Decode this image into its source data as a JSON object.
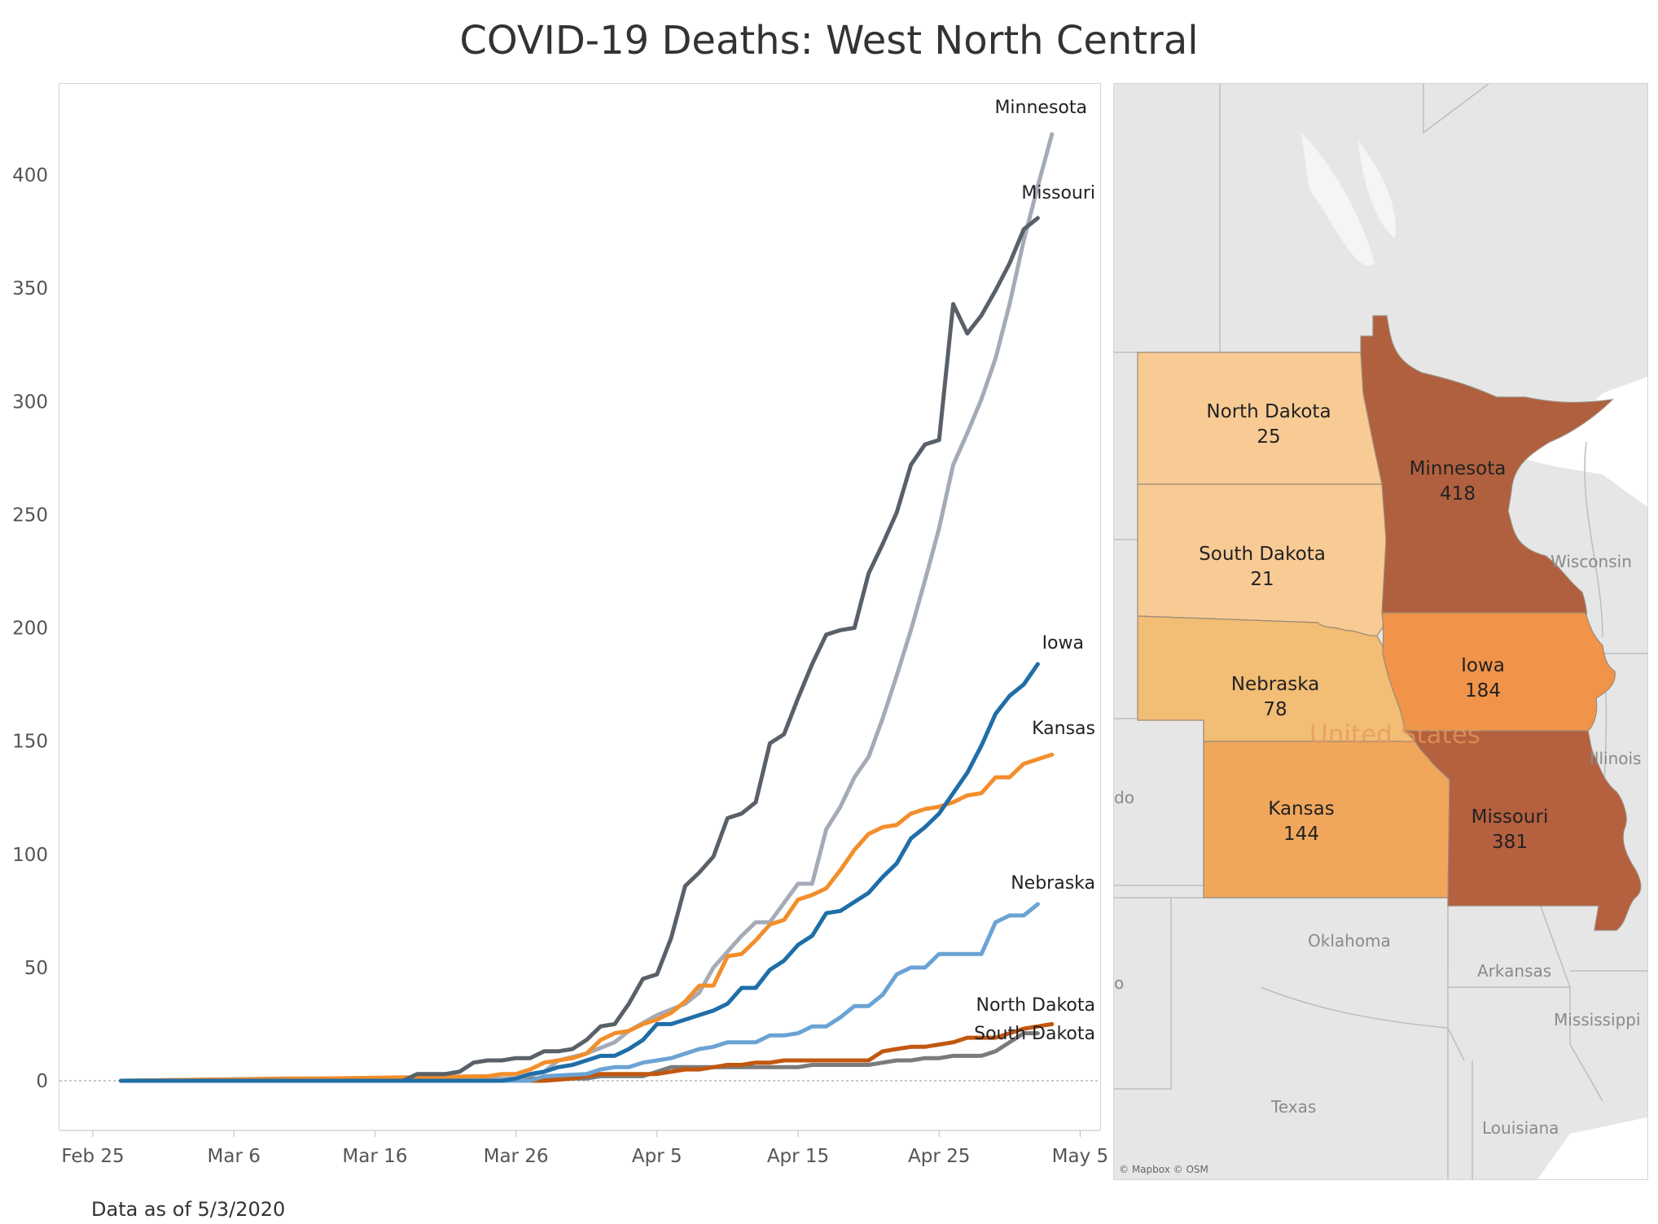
{
  "title": "COVID-19 Deaths: West North Central",
  "footnote": "Data as of 5/3/2020",
  "chart_data": {
    "type": "line",
    "title": "COVID-19 Deaths: West North Central",
    "xlabel": "",
    "ylabel": "",
    "ylim": [
      -17,
      430
    ],
    "x_start": "2020-02-27",
    "x_ticks": [
      "Feb 25",
      "Mar 6",
      "Mar 16",
      "Mar 26",
      "Apr 5",
      "Apr 15",
      "Apr 25",
      "May 5"
    ],
    "y_ticks": [
      0,
      50,
      100,
      150,
      200,
      250,
      300,
      350,
      400
    ],
    "zero_line": "dotted",
    "series": [
      {
        "name": "Minnesota",
        "color": "#a4abb6",
        "points": [
          [
            "2020-02-27",
            0
          ],
          [
            "2020-03-21",
            1
          ],
          [
            "2020-03-26",
            1
          ],
          [
            "2020-03-28",
            4
          ],
          [
            "2020-03-29",
            9
          ],
          [
            "2020-03-31",
            12
          ],
          [
            "2020-04-02",
            17
          ],
          [
            "2020-04-03",
            22
          ],
          [
            "2020-04-05",
            29
          ],
          [
            "2020-04-07",
            34
          ],
          [
            "2020-04-08",
            39
          ],
          [
            "2020-04-09",
            50
          ],
          [
            "2020-04-10",
            57
          ],
          [
            "2020-04-11",
            64
          ],
          [
            "2020-04-12",
            70
          ],
          [
            "2020-04-13",
            70
          ],
          [
            "2020-04-15",
            87
          ],
          [
            "2020-04-16",
            87
          ],
          [
            "2020-04-17",
            111
          ],
          [
            "2020-04-18",
            121
          ],
          [
            "2020-04-19",
            134
          ],
          [
            "2020-04-20",
            143
          ],
          [
            "2020-04-21",
            160
          ],
          [
            "2020-04-22",
            179
          ],
          [
            "2020-04-23",
            199
          ],
          [
            "2020-04-24",
            221
          ],
          [
            "2020-04-25",
            244
          ],
          [
            "2020-04-26",
            272
          ],
          [
            "2020-04-27",
            286
          ],
          [
            "2020-04-28",
            301
          ],
          [
            "2020-04-29",
            319
          ],
          [
            "2020-04-30",
            343
          ],
          [
            "2020-05-01",
            371
          ],
          [
            "2020-05-02",
            395
          ],
          [
            "2020-05-03",
            418
          ]
        ]
      },
      {
        "name": "Missouri",
        "color": "#596068",
        "points": [
          [
            "2020-02-27",
            0
          ],
          [
            "2020-03-18",
            0
          ],
          [
            "2020-03-19",
            3
          ],
          [
            "2020-03-21",
            3
          ],
          [
            "2020-03-22",
            4
          ],
          [
            "2020-03-23",
            8
          ],
          [
            "2020-03-24",
            9
          ],
          [
            "2020-03-25",
            9
          ],
          [
            "2020-03-26",
            10
          ],
          [
            "2020-03-27",
            10
          ],
          [
            "2020-03-28",
            13
          ],
          [
            "2020-03-29",
            13
          ],
          [
            "2020-03-30",
            14
          ],
          [
            "2020-03-31",
            18
          ],
          [
            "2020-04-01",
            24
          ],
          [
            "2020-04-02",
            25
          ],
          [
            "2020-04-03",
            34
          ],
          [
            "2020-04-04",
            45
          ],
          [
            "2020-04-05",
            47
          ],
          [
            "2020-04-06",
            63
          ],
          [
            "2020-04-07",
            86
          ],
          [
            "2020-04-08",
            92
          ],
          [
            "2020-04-09",
            99
          ],
          [
            "2020-04-10",
            116
          ],
          [
            "2020-04-11",
            118
          ],
          [
            "2020-04-12",
            123
          ],
          [
            "2020-04-13",
            149
          ],
          [
            "2020-04-14",
            153
          ],
          [
            "2020-04-15",
            169
          ],
          [
            "2020-04-16",
            184
          ],
          [
            "2020-04-17",
            197
          ],
          [
            "2020-04-18",
            199
          ],
          [
            "2020-04-19",
            200
          ],
          [
            "2020-04-20",
            224
          ],
          [
            "2020-04-21",
            237
          ],
          [
            "2020-04-22",
            251
          ],
          [
            "2020-04-23",
            272
          ],
          [
            "2020-04-24",
            281
          ],
          [
            "2020-04-25",
            283
          ],
          [
            "2020-04-26",
            343
          ],
          [
            "2020-04-27",
            330
          ],
          [
            "2020-04-28",
            338
          ],
          [
            "2020-04-29",
            349
          ],
          [
            "2020-04-30",
            361
          ],
          [
            "2020-05-01",
            376
          ],
          [
            "2020-05-02",
            381
          ]
        ]
      },
      {
        "name": "Iowa",
        "color": "#1f6ea8",
        "points": [
          [
            "2020-02-27",
            0
          ],
          [
            "2020-03-25",
            0
          ],
          [
            "2020-03-26",
            1
          ],
          [
            "2020-03-27",
            3
          ],
          [
            "2020-03-28",
            4
          ],
          [
            "2020-03-29",
            6
          ],
          [
            "2020-03-30",
            7
          ],
          [
            "2020-03-31",
            9
          ],
          [
            "2020-04-01",
            11
          ],
          [
            "2020-04-02",
            11
          ],
          [
            "2020-04-03",
            14
          ],
          [
            "2020-04-04",
            18
          ],
          [
            "2020-04-05",
            25
          ],
          [
            "2020-04-06",
            25
          ],
          [
            "2020-04-07",
            27
          ],
          [
            "2020-04-08",
            29
          ],
          [
            "2020-04-09",
            31
          ],
          [
            "2020-04-10",
            34
          ],
          [
            "2020-04-11",
            41
          ],
          [
            "2020-04-12",
            41
          ],
          [
            "2020-04-13",
            49
          ],
          [
            "2020-04-14",
            53
          ],
          [
            "2020-04-15",
            60
          ],
          [
            "2020-04-16",
            64
          ],
          [
            "2020-04-17",
            74
          ],
          [
            "2020-04-18",
            75
          ],
          [
            "2020-04-19",
            79
          ],
          [
            "2020-04-20",
            83
          ],
          [
            "2020-04-21",
            90
          ],
          [
            "2020-04-22",
            96
          ],
          [
            "2020-04-23",
            107
          ],
          [
            "2020-04-24",
            112
          ],
          [
            "2020-04-25",
            118
          ],
          [
            "2020-04-26",
            127
          ],
          [
            "2020-04-27",
            136
          ],
          [
            "2020-04-28",
            148
          ],
          [
            "2020-04-29",
            162
          ],
          [
            "2020-04-30",
            170
          ],
          [
            "2020-05-01",
            175
          ],
          [
            "2020-05-02",
            184
          ]
        ]
      },
      {
        "name": "Kansas",
        "color": "#f28e2b",
        "points": [
          [
            "2020-02-27",
            0
          ],
          [
            "2020-03-12",
            1
          ],
          [
            "2020-03-24",
            2
          ],
          [
            "2020-03-25",
            3
          ],
          [
            "2020-03-26",
            3
          ],
          [
            "2020-03-27",
            5
          ],
          [
            "2020-03-28",
            8
          ],
          [
            "2020-03-29",
            9
          ],
          [
            "2020-03-30",
            10
          ],
          [
            "2020-03-31",
            12
          ],
          [
            "2020-04-01",
            18
          ],
          [
            "2020-04-02",
            21
          ],
          [
            "2020-04-03",
            22
          ],
          [
            "2020-04-04",
            25
          ],
          [
            "2020-04-05",
            27
          ],
          [
            "2020-04-06",
            30
          ],
          [
            "2020-04-07",
            35
          ],
          [
            "2020-04-08",
            42
          ],
          [
            "2020-04-09",
            42
          ],
          [
            "2020-04-10",
            55
          ],
          [
            "2020-04-11",
            56
          ],
          [
            "2020-04-12",
            62
          ],
          [
            "2020-04-13",
            69
          ],
          [
            "2020-04-14",
            71
          ],
          [
            "2020-04-15",
            80
          ],
          [
            "2020-04-16",
            82
          ],
          [
            "2020-04-17",
            85
          ],
          [
            "2020-04-18",
            93
          ],
          [
            "2020-04-19",
            102
          ],
          [
            "2020-04-20",
            109
          ],
          [
            "2020-04-21",
            112
          ],
          [
            "2020-04-22",
            113
          ],
          [
            "2020-04-23",
            118
          ],
          [
            "2020-04-24",
            120
          ],
          [
            "2020-04-25",
            121
          ],
          [
            "2020-04-26",
            123
          ],
          [
            "2020-04-27",
            126
          ],
          [
            "2020-04-28",
            127
          ],
          [
            "2020-04-29",
            134
          ],
          [
            "2020-04-30",
            134
          ],
          [
            "2020-05-01",
            140
          ],
          [
            "2020-05-02",
            142
          ],
          [
            "2020-05-03",
            144
          ]
        ]
      },
      {
        "name": "Nebraska",
        "color": "#6aa3d4",
        "points": [
          [
            "2020-02-27",
            0
          ],
          [
            "2020-03-27",
            0
          ],
          [
            "2020-03-28",
            2
          ],
          [
            "2020-03-31",
            3
          ],
          [
            "2020-04-01",
            5
          ],
          [
            "2020-04-02",
            6
          ],
          [
            "2020-04-03",
            6
          ],
          [
            "2020-04-04",
            8
          ],
          [
            "2020-04-05",
            9
          ],
          [
            "2020-04-06",
            10
          ],
          [
            "2020-04-07",
            12
          ],
          [
            "2020-04-08",
            14
          ],
          [
            "2020-04-09",
            15
          ],
          [
            "2020-04-10",
            17
          ],
          [
            "2020-04-11",
            17
          ],
          [
            "2020-04-12",
            17
          ],
          [
            "2020-04-13",
            20
          ],
          [
            "2020-04-14",
            20
          ],
          [
            "2020-04-15",
            21
          ],
          [
            "2020-04-16",
            24
          ],
          [
            "2020-04-17",
            24
          ],
          [
            "2020-04-18",
            28
          ],
          [
            "2020-04-19",
            33
          ],
          [
            "2020-04-20",
            33
          ],
          [
            "2020-04-21",
            38
          ],
          [
            "2020-04-22",
            47
          ],
          [
            "2020-04-23",
            50
          ],
          [
            "2020-04-24",
            50
          ],
          [
            "2020-04-25",
            56
          ],
          [
            "2020-04-26",
            56
          ],
          [
            "2020-04-27",
            56
          ],
          [
            "2020-04-28",
            56
          ],
          [
            "2020-04-29",
            70
          ],
          [
            "2020-04-30",
            73
          ],
          [
            "2020-05-01",
            73
          ],
          [
            "2020-05-02",
            78
          ]
        ]
      },
      {
        "name": "North Dakota",
        "color": "#c2570f",
        "points": [
          [
            "2020-02-27",
            0
          ],
          [
            "2020-03-28",
            0
          ],
          [
            "2020-03-30",
            1
          ],
          [
            "2020-03-31",
            2
          ],
          [
            "2020-04-01",
            3
          ],
          [
            "2020-04-05",
            3
          ],
          [
            "2020-04-06",
            4
          ],
          [
            "2020-04-07",
            5
          ],
          [
            "2020-04-08",
            5
          ],
          [
            "2020-04-09",
            6
          ],
          [
            "2020-04-10",
            7
          ],
          [
            "2020-04-11",
            7
          ],
          [
            "2020-04-12",
            8
          ],
          [
            "2020-04-13",
            8
          ],
          [
            "2020-04-14",
            9
          ],
          [
            "2020-04-20",
            9
          ],
          [
            "2020-04-21",
            13
          ],
          [
            "2020-04-22",
            14
          ],
          [
            "2020-04-23",
            15
          ],
          [
            "2020-04-24",
            15
          ],
          [
            "2020-04-25",
            16
          ],
          [
            "2020-04-26",
            17
          ],
          [
            "2020-04-27",
            19
          ],
          [
            "2020-04-29",
            19
          ],
          [
            "2020-04-30",
            21
          ],
          [
            "2020-05-01",
            23
          ],
          [
            "2020-05-02",
            24
          ],
          [
            "2020-05-03",
            25
          ]
        ]
      },
      {
        "name": "South Dakota",
        "color": "#7b7b7b",
        "points": [
          [
            "2020-02-27",
            0
          ],
          [
            "2020-03-10",
            1
          ],
          [
            "2020-03-20",
            1
          ],
          [
            "2020-03-26",
            1
          ],
          [
            "2020-03-31",
            1
          ],
          [
            "2020-04-01",
            2
          ],
          [
            "2020-04-04",
            2
          ],
          [
            "2020-04-05",
            4
          ],
          [
            "2020-04-06",
            6
          ],
          [
            "2020-04-10",
            6
          ],
          [
            "2020-04-15",
            6
          ],
          [
            "2020-04-16",
            7
          ],
          [
            "2020-04-20",
            7
          ],
          [
            "2020-04-21",
            8
          ],
          [
            "2020-04-22",
            9
          ],
          [
            "2020-04-23",
            9
          ],
          [
            "2020-04-24",
            10
          ],
          [
            "2020-04-25",
            10
          ],
          [
            "2020-04-26",
            11
          ],
          [
            "2020-04-28",
            11
          ],
          [
            "2020-04-29",
            13
          ],
          [
            "2020-04-30",
            17
          ],
          [
            "2020-05-01",
            21
          ],
          [
            "2020-05-02",
            21
          ]
        ]
      }
    ]
  },
  "map": {
    "states": [
      {
        "name": "North Dakota",
        "value": "25",
        "color": "#f8cb94"
      },
      {
        "name": "South Dakota",
        "value": "21",
        "color": "#f8cb94"
      },
      {
        "name": "Nebraska",
        "value": "78",
        "color": "#f2bd74"
      },
      {
        "name": "Kansas",
        "value": "144",
        "color": "#f0a75b"
      },
      {
        "name": "Minnesota",
        "value": "418",
        "color": "#b0603f"
      },
      {
        "name": "Iowa",
        "value": "184",
        "color": "#f19449"
      },
      {
        "name": "Missouri",
        "value": "381",
        "color": "#b5603e"
      }
    ],
    "base_labels": [
      "Wisconsin",
      "Illinois",
      "Oklahoma",
      "Arkansas",
      "Mississippi",
      "Texas",
      "Louisiana",
      "United States"
    ],
    "attribution": "© Mapbox © OSM"
  }
}
